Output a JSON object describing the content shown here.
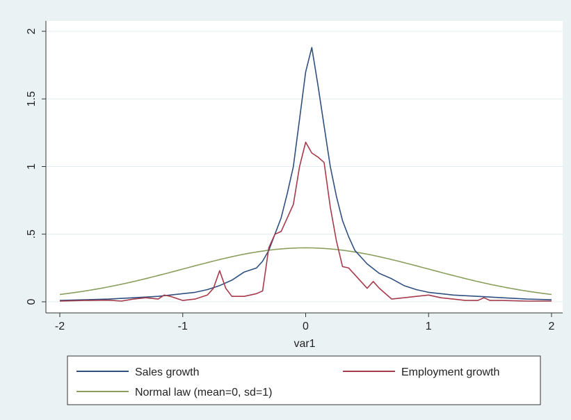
{
  "colors": {
    "background": "#eaf2f3",
    "plot_background": "#ffffff",
    "grid": "#e3ecee",
    "axis": "#333333"
  },
  "chart_data": {
    "type": "line",
    "title": "",
    "xlabel": "var1",
    "ylabel": "",
    "xlim": [
      -2,
      2
    ],
    "ylim": [
      0,
      2
    ],
    "grid": true,
    "x_ticks": [
      -2,
      -1,
      0,
      1,
      2
    ],
    "x_tick_labels": [
      "-2",
      "-1",
      "0",
      "1",
      "2"
    ],
    "y_ticks": [
      0,
      0.5,
      1,
      1.5,
      2
    ],
    "y_tick_labels": [
      "0",
      ".5",
      "1",
      "1.5",
      "2"
    ],
    "legend_position": "bottom",
    "series": [
      {
        "name": "Sales growth",
        "color": "#2f4f7f",
        "x": [
          -2,
          -1.8,
          -1.6,
          -1.4,
          -1.2,
          -1.0,
          -0.9,
          -0.8,
          -0.7,
          -0.6,
          -0.5,
          -0.4,
          -0.35,
          -0.3,
          -0.25,
          -0.2,
          -0.15,
          -0.1,
          -0.05,
          0,
          0.05,
          0.1,
          0.15,
          0.2,
          0.25,
          0.3,
          0.35,
          0.4,
          0.5,
          0.6,
          0.7,
          0.8,
          0.9,
          1.0,
          1.2,
          1.4,
          1.6,
          1.8,
          2.0
        ],
        "y": [
          0.01,
          0.015,
          0.02,
          0.03,
          0.04,
          0.06,
          0.07,
          0.09,
          0.12,
          0.16,
          0.22,
          0.25,
          0.3,
          0.38,
          0.5,
          0.62,
          0.8,
          1.0,
          1.35,
          1.7,
          1.88,
          1.6,
          1.3,
          1.0,
          0.78,
          0.6,
          0.48,
          0.38,
          0.28,
          0.21,
          0.17,
          0.12,
          0.09,
          0.07,
          0.05,
          0.04,
          0.03,
          0.02,
          0.015
        ]
      },
      {
        "name": "Employment growth",
        "color": "#a63a4a",
        "x": [
          -2,
          -1.8,
          -1.6,
          -1.5,
          -1.4,
          -1.3,
          -1.2,
          -1.15,
          -1.1,
          -1.0,
          -0.9,
          -0.8,
          -0.75,
          -0.7,
          -0.65,
          -0.6,
          -0.5,
          -0.4,
          -0.35,
          -0.3,
          -0.25,
          -0.2,
          -0.15,
          -0.1,
          -0.05,
          0,
          0.05,
          0.1,
          0.15,
          0.2,
          0.25,
          0.3,
          0.35,
          0.4,
          0.45,
          0.5,
          0.55,
          0.6,
          0.7,
          0.8,
          0.9,
          1.0,
          1.1,
          1.2,
          1.3,
          1.4,
          1.45,
          1.5,
          1.6,
          1.8,
          2.0
        ],
        "y": [
          0.005,
          0.01,
          0.012,
          0.005,
          0.02,
          0.03,
          0.02,
          0.05,
          0.04,
          0.01,
          0.02,
          0.05,
          0.1,
          0.23,
          0.1,
          0.04,
          0.04,
          0.06,
          0.08,
          0.4,
          0.5,
          0.52,
          0.62,
          0.72,
          1.0,
          1.18,
          1.1,
          1.07,
          1.03,
          0.7,
          0.45,
          0.26,
          0.25,
          0.2,
          0.15,
          0.1,
          0.15,
          0.1,
          0.02,
          0.03,
          0.04,
          0.05,
          0.03,
          0.02,
          0.01,
          0.01,
          0.03,
          0.01,
          0.01,
          0.005,
          0.005
        ]
      },
      {
        "name": "Normal law (mean=0, sd=1)",
        "color": "#8a9e5e",
        "function": "normal_pdf",
        "mean": 0,
        "sd": 1
      }
    ]
  }
}
